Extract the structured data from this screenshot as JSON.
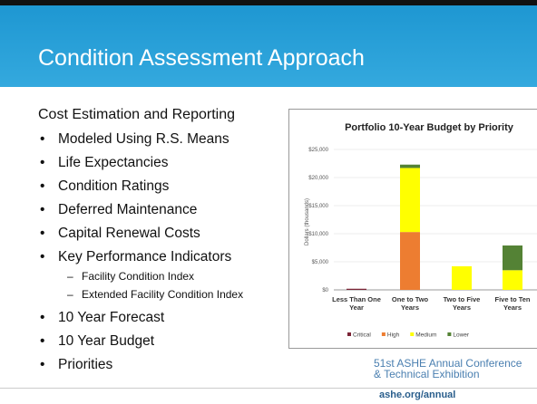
{
  "header": {
    "title": "Condition Assessment Approach"
  },
  "body": {
    "heading": "Cost Estimation and Reporting",
    "items": [
      "Modeled Using R.S. Means",
      "Life Expectancies",
      "Condition Ratings",
      "Deferred Maintenance",
      "Capital Renewal Costs",
      "Key Performance Indicators"
    ],
    "subitems": [
      "Facility Condition Index",
      "Extended Facility Condition Index"
    ],
    "items2": [
      "10 Year Forecast",
      "10 Year Budget",
      "Priorities"
    ]
  },
  "chart_data": {
    "type": "stacked_bar",
    "title": "Portfolio 10-Year Budget by Priority",
    "y_label": "Dollars (thousands)",
    "categories": [
      "Less Than One Year",
      "One to Two Years",
      "Two to Five Years",
      "Five to Ten Years"
    ],
    "series": [
      {
        "name": "Critical",
        "color": "#7b2436",
        "values": [
          200,
          0,
          0,
          0
        ]
      },
      {
        "name": "High",
        "color": "#ed7d31",
        "values": [
          0,
          10300,
          0,
          0
        ]
      },
      {
        "name": "Medium",
        "color": "#ffff00",
        "values": [
          0,
          11400,
          4200,
          3500
        ]
      },
      {
        "name": "Lower",
        "color": "#548235",
        "values": [
          0,
          600,
          0,
          4400
        ]
      }
    ],
    "ylim": [
      0,
      25000
    ],
    "yticks": [
      {
        "value": 0,
        "label": "$0"
      },
      {
        "value": 5000,
        "label": "$5,000"
      },
      {
        "value": 10000,
        "label": "$10,000"
      },
      {
        "value": 15000,
        "label": "$15,000"
      },
      {
        "value": 20000,
        "label": "$20,000"
      },
      {
        "value": 25000,
        "label": "$25,000"
      }
    ]
  },
  "footer": {
    "conference": "51st ASHE Annual Conference",
    "exhibition": "& Technical Exhibition",
    "url": "ashe.org/annual"
  }
}
